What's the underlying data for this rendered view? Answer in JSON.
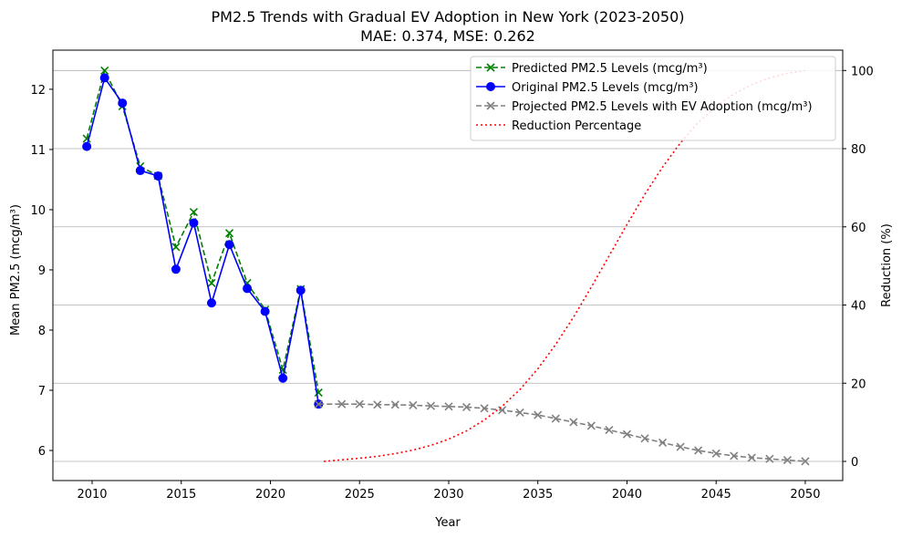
{
  "chart_data": {
    "type": "line",
    "title": "PM2.5 Trends with Gradual EV Adoption in New York (2023-2050)",
    "subtitle": "MAE: 0.374, MSE: 0.262",
    "xlabel": "Year",
    "ylabel": "Mean PM2.5 (mcg/m³)",
    "ylabel_right": "Reduction (%)",
    "xlim": [
      2007.8,
      2052.1
    ],
    "ylim": [
      5.5,
      12.65
    ],
    "ylim_right": [
      -4.9,
      105.2
    ],
    "xticks": [
      2010,
      2015,
      2020,
      2025,
      2030,
      2035,
      2040,
      2045,
      2050
    ],
    "yticks": [
      6,
      7,
      8,
      9,
      10,
      11,
      12
    ],
    "yticks_right": [
      0,
      20,
      40,
      60,
      80,
      100
    ],
    "grid": "horizontal gridlines on right axis",
    "legend_position": "upper-right",
    "series": [
      {
        "name": "Predicted PM2.5 Levels (mcg/m³)",
        "color": "#008000",
        "style": "dashed",
        "marker": "x",
        "axis": "left",
        "x": [
          2009.7,
          2010.7,
          2011.7,
          2012.7,
          2013.7,
          2014.7,
          2015.7,
          2016.7,
          2017.7,
          2018.7,
          2019.7,
          2020.7,
          2021.7,
          2022.7
        ],
        "y": [
          11.18,
          12.31,
          11.72,
          10.72,
          10.56,
          9.38,
          9.96,
          8.78,
          9.61,
          8.78,
          8.34,
          7.34,
          8.68,
          6.96
        ]
      },
      {
        "name": "Original PM2.5 Levels (mcg/m³)",
        "color": "#0000ff",
        "style": "solid",
        "marker": "o",
        "axis": "left",
        "x": [
          2009.7,
          2010.7,
          2011.7,
          2012.7,
          2013.7,
          2014.7,
          2015.7,
          2016.7,
          2017.7,
          2018.7,
          2019.7,
          2020.7,
          2021.7,
          2022.7
        ],
        "y": [
          11.05,
          12.19,
          11.77,
          10.65,
          10.56,
          9.01,
          9.78,
          8.45,
          9.42,
          8.69,
          8.31,
          7.2,
          8.66,
          6.77
        ]
      },
      {
        "name": "Projected PM2.5 Levels with EV Adoption (mcg/m³)",
        "color": "#808080",
        "style": "dashed",
        "marker": "x",
        "axis": "left",
        "x": [
          2022.7,
          2024,
          2025,
          2026,
          2027,
          2028,
          2029,
          2030,
          2031,
          2032,
          2033,
          2034,
          2035,
          2036,
          2037,
          2038,
          2039,
          2040,
          2041,
          2042,
          2043,
          2044,
          2045,
          2046,
          2047,
          2048,
          2049,
          2050
        ],
        "y": [
          6.77,
          6.77,
          6.77,
          6.76,
          6.76,
          6.75,
          6.74,
          6.73,
          6.72,
          6.7,
          6.67,
          6.63,
          6.59,
          6.53,
          6.47,
          6.41,
          6.34,
          6.27,
          6.2,
          6.13,
          6.06,
          6.0,
          5.95,
          5.91,
          5.88,
          5.86,
          5.84,
          5.82
        ]
      },
      {
        "name": "Reduction Percentage",
        "color": "#ff0000",
        "style": "dotted",
        "marker": "none",
        "axis": "right",
        "x": [
          2023,
          2024,
          2025,
          2026,
          2027,
          2028,
          2029,
          2030,
          2031,
          2032,
          2033,
          2034,
          2035,
          2036,
          2037,
          2038,
          2039,
          2040,
          2041,
          2042,
          2043,
          2044,
          2045,
          2046,
          2047,
          2048,
          2049,
          2050
        ],
        "y": [
          0,
          0.4,
          0.8,
          1.3,
          2.0,
          2.9,
          4.1,
          5.7,
          7.8,
          10.6,
          14.1,
          18.4,
          23.7,
          29.9,
          36.9,
          44.6,
          52.6,
          60.6,
          68.3,
          75.3,
          81.5,
          86.7,
          90.8,
          94.0,
          96.4,
          98.1,
          99.3,
          100
        ]
      }
    ]
  }
}
